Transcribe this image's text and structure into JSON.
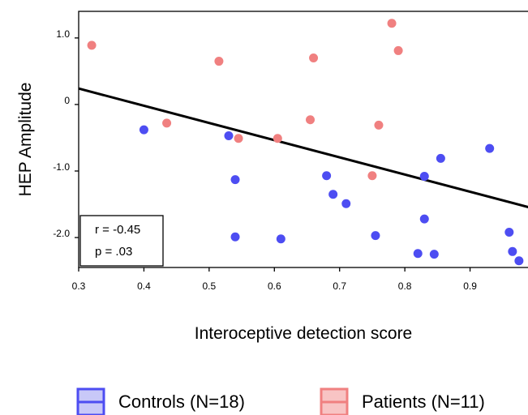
{
  "chart_data": {
    "type": "scatter",
    "title": "",
    "xlabel": "Interoceptive detection score",
    "ylabel": "HEP Amplitude",
    "xlim": [
      0.3,
      1.0
    ],
    "ylim": [
      -2.45,
      1.4
    ],
    "x_ticks": [
      0.3,
      0.4,
      0.5,
      0.6,
      0.7,
      0.8,
      0.9
    ],
    "x_tick_labels": [
      "0.3",
      "0.4",
      "0.5",
      "0.6",
      "0.7",
      "0.8",
      "0.9"
    ],
    "y_ticks": [
      1.0,
      0.0,
      -1.0,
      -2.0
    ],
    "y_tick_labels": [
      "1.0",
      "0",
      "-1.0",
      "-2.0"
    ],
    "grid": false,
    "legend_position": "bottom",
    "series": [
      {
        "name": "Controls (N=18)",
        "color": "#4d4df2",
        "legend_fill": "#c8c8f8",
        "points": [
          {
            "x": 0.4,
            "y": -0.38
          },
          {
            "x": 0.53,
            "y": -0.47
          },
          {
            "x": 0.54,
            "y": -1.13
          },
          {
            "x": 0.54,
            "y": -1.99
          },
          {
            "x": 0.61,
            "y": -2.02
          },
          {
            "x": 0.68,
            "y": -1.07
          },
          {
            "x": 0.69,
            "y": -1.35
          },
          {
            "x": 0.71,
            "y": -1.49
          },
          {
            "x": 0.755,
            "y": -1.97
          },
          {
            "x": 0.82,
            "y": -2.24
          },
          {
            "x": 0.83,
            "y": -1.72
          },
          {
            "x": 0.83,
            "y": -1.08
          },
          {
            "x": 0.845,
            "y": -2.25
          },
          {
            "x": 0.855,
            "y": -0.81
          },
          {
            "x": 0.93,
            "y": -0.66
          },
          {
            "x": 0.96,
            "y": -1.92
          },
          {
            "x": 0.965,
            "y": -2.21
          },
          {
            "x": 0.975,
            "y": -2.35
          }
        ]
      },
      {
        "name": "Patients (N=11)",
        "color": "#f08080",
        "legend_fill": "#f8c4c4",
        "points": [
          {
            "x": 0.32,
            "y": 0.89
          },
          {
            "x": 0.435,
            "y": -0.28
          },
          {
            "x": 0.515,
            "y": 0.65
          },
          {
            "x": 0.545,
            "y": -0.51
          },
          {
            "x": 0.605,
            "y": -0.51
          },
          {
            "x": 0.655,
            "y": -0.23
          },
          {
            "x": 0.66,
            "y": 0.7
          },
          {
            "x": 0.75,
            "y": -1.07
          },
          {
            "x": 0.76,
            "y": -0.31
          },
          {
            "x": 0.78,
            "y": 1.22
          },
          {
            "x": 0.79,
            "y": 0.81
          }
        ]
      }
    ],
    "regression_line": {
      "x": [
        0.3,
        1.0
      ],
      "y": [
        0.24,
        -1.57
      ],
      "color": "#000000"
    },
    "annotation": {
      "r_text": "r = -0.45",
      "p_text": "p = .03"
    }
  }
}
